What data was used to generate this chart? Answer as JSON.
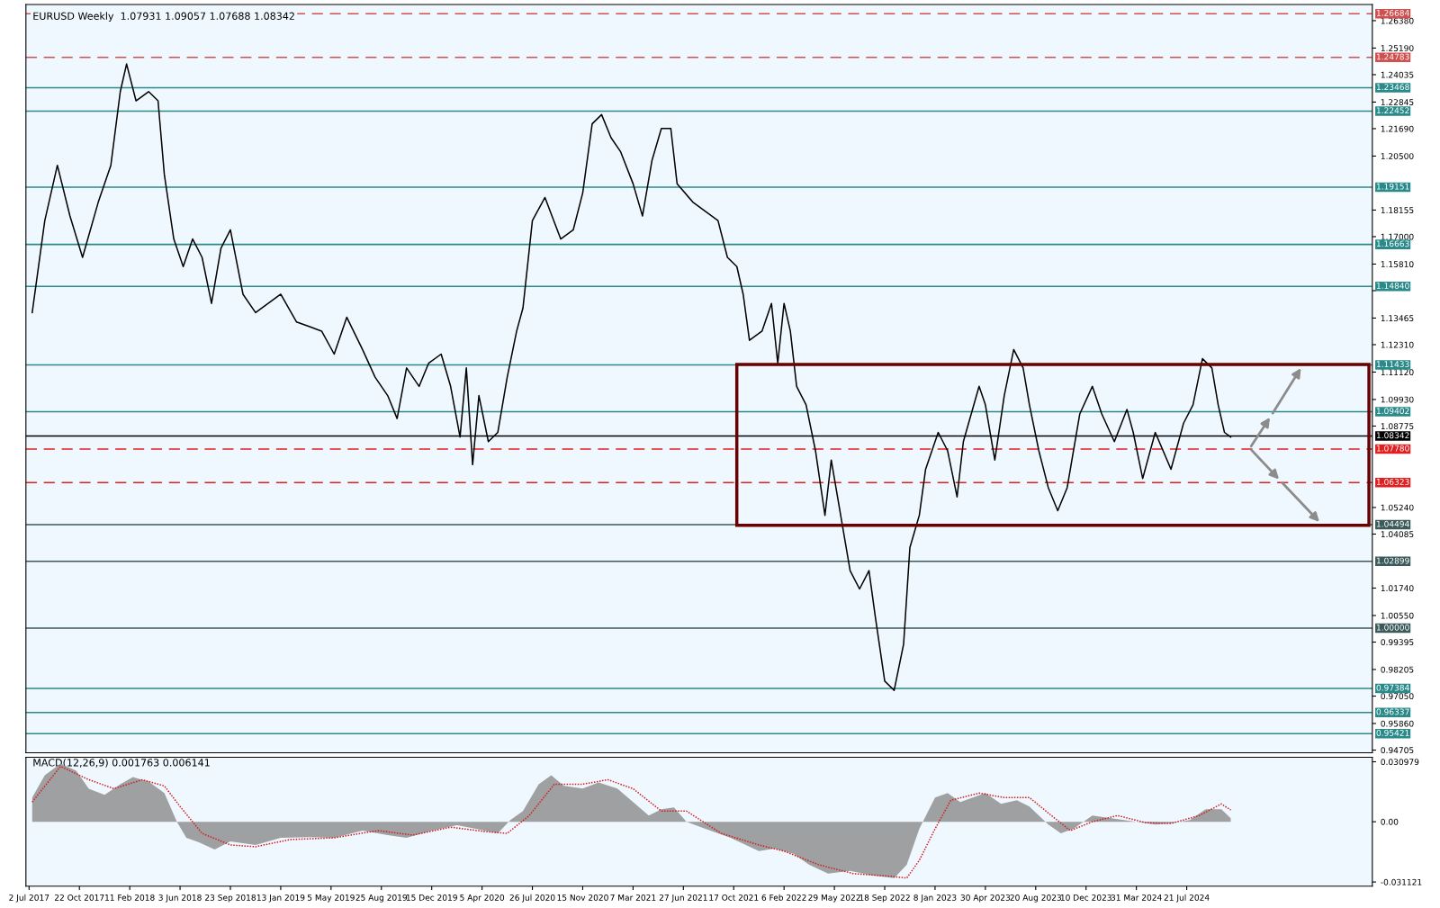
{
  "chart_data": [
    {
      "type": "line",
      "title": "EURUSD Weekly  1.07931 1.09057 1.07688 1.08342",
      "xlim": [
        "2017-06-25",
        "2025-09-07"
      ],
      "ylim": [
        0.9459,
        1.2708
      ],
      "yticks": [
        {
          "value": 1.2638,
          "label": "1.26380"
        },
        {
          "value": 1.2519,
          "label": "1.25190"
        },
        1.24035,
        1.22845,
        {
          "value": 1.2169,
          "label": "1.21690"
        },
        {
          "value": 1.205,
          "label": "1.20500"
        },
        1.18155,
        {
          "value": 1.17,
          "label": "1.17000"
        },
        {
          "value": 1.1581,
          "label": "1.15810"
        },
        {
          "value": 1.14655,
          "label": null
        },
        1.13465,
        {
          "value": 1.1231,
          "label": "1.12310"
        },
        {
          "value": 1.1112,
          "label": "1.11120"
        },
        {
          "value": 1.0993,
          "label": "1.09930"
        },
        1.08775,
        {
          "value": 1.0524,
          "label": "1.05240"
        },
        1.04085,
        {
          "value": 1.0174,
          "label": "1.01740"
        },
        {
          "value": 1.0055,
          "label": "1.00550"
        },
        0.99395,
        0.98205,
        {
          "value": 0.9705,
          "label": "0.97050"
        },
        {
          "value": 0.9586,
          "label": "0.95860"
        },
        0.94705
      ],
      "tick_labels": "y",
      "grid": false,
      "legend": false,
      "series": [
        {
          "color": "#000000",
          "x": [
            "2017-07-09",
            "2017-08-06",
            "2017-09-03",
            "2017-10-01",
            "2017-10-29",
            "2017-12-03",
            "2017-12-31",
            "2018-01-21",
            "2018-02-04",
            "2018-02-25",
            "2018-03-25",
            "2018-04-15",
            "2018-04-29",
            "2018-05-20",
            "2018-06-10",
            "2018-07-01",
            "2018-07-22",
            "2018-08-12",
            "2018-09-02",
            "2018-09-23",
            "2018-10-21",
            "2018-11-18",
            "2018-12-16",
            "2019-01-13",
            "2019-02-17",
            "2019-03-17",
            "2019-04-14",
            "2019-05-12",
            "2019-06-09",
            "2019-07-14",
            "2019-08-11",
            "2019-09-08",
            "2019-09-29",
            "2019-10-20",
            "2019-11-17",
            "2019-12-08",
            "2020-01-05",
            "2020-01-26",
            "2020-02-16",
            "2020-03-01",
            "2020-03-15",
            "2020-03-29",
            "2020-04-19",
            "2020-05-10",
            "2020-05-31",
            "2020-06-21",
            "2020-07-05",
            "2020-07-26",
            "2020-08-23",
            "2020-09-27",
            "2020-10-25",
            "2020-11-15",
            "2020-12-06",
            "2020-12-27",
            "2021-01-17",
            "2021-02-07",
            "2021-03-07",
            "2021-03-28",
            "2021-04-18",
            "2021-05-09",
            "2021-05-30",
            "2021-06-13",
            "2021-07-18",
            "2021-08-15",
            "2021-09-12",
            "2021-10-03",
            "2021-10-24",
            "2021-11-07",
            "2021-11-21",
            "2021-12-19",
            "2022-01-09",
            "2022-01-23",
            "2022-02-06",
            "2022-02-20",
            "2022-03-06",
            "2022-03-27",
            "2022-04-17",
            "2022-05-08",
            "2022-05-22",
            "2022-06-12",
            "2022-07-03",
            "2022-07-24",
            "2022-08-14",
            "2022-08-28",
            "2022-09-18",
            "2022-10-09",
            "2022-10-30",
            "2022-11-13",
            "2022-12-04",
            "2022-12-18",
            "2023-01-15",
            "2023-02-05",
            "2023-02-26",
            "2023-03-12",
            "2023-04-16",
            "2023-04-30",
            "2023-05-21",
            "2023-06-11",
            "2023-07-02",
            "2023-07-23",
            "2023-08-06",
            "2023-08-27",
            "2023-09-17",
            "2023-10-08",
            "2023-10-29",
            "2023-11-26",
            "2023-12-24",
            "2024-01-14",
            "2024-02-11",
            "2024-03-10",
            "2024-03-24",
            "2024-04-14",
            "2024-05-12",
            "2024-06-16",
            "2024-07-14",
            "2024-08-04",
            "2024-08-25",
            "2024-09-15",
            "2024-09-29",
            "2024-10-13",
            "2024-10-27"
          ],
          "values": [
            1.137,
            1.177,
            1.201,
            1.179,
            1.161,
            1.185,
            1.201,
            1.233,
            1.245,
            1.229,
            1.233,
            1.229,
            1.197,
            1.169,
            1.157,
            1.169,
            1.161,
            1.141,
            1.165,
            1.173,
            1.145,
            1.137,
            1.141,
            1.145,
            1.133,
            1.131,
            1.129,
            1.119,
            1.135,
            1.121,
            1.109,
            1.101,
            1.091,
            1.113,
            1.105,
            1.115,
            1.119,
            1.105,
            1.083,
            1.113,
            1.071,
            1.101,
            1.081,
            1.085,
            1.109,
            1.129,
            1.139,
            1.177,
            1.187,
            1.169,
            1.173,
            1.189,
            1.219,
            1.223,
            1.213,
            1.207,
            1.193,
            1.179,
            1.203,
            1.217,
            1.217,
            1.193,
            1.185,
            1.181,
            1.177,
            1.161,
            1.157,
            1.145,
            1.125,
            1.129,
            1.141,
            1.115,
            1.141,
            1.129,
            1.105,
            1.097,
            1.077,
            1.049,
            1.073,
            1.049,
            1.025,
            1.017,
            1.025,
            1.005,
            0.977,
            0.973,
            0.993,
            1.035,
            1.049,
            1.069,
            1.085,
            1.077,
            1.057,
            1.081,
            1.105,
            1.097,
            1.073,
            1.101,
            1.121,
            1.113,
            1.097,
            1.077,
            1.061,
            1.051,
            1.061,
            1.093,
            1.105,
            1.093,
            1.081,
            1.095,
            1.085,
            1.065,
            1.085,
            1.069,
            1.089,
            1.097,
            1.117,
            1.113,
            1.097,
            1.085,
            1.083
          ]
        }
      ],
      "ref_lines": [
        {
          "axis": "y",
          "value": 1.26684,
          "label": "1.26684",
          "color": "#d05050",
          "line_style": "dashed"
        },
        {
          "axis": "y",
          "value": 1.24783,
          "label": "1.24783",
          "color": "#d05050",
          "line_style": "dashed"
        },
        {
          "axis": "y",
          "value": 1.23468,
          "label": "1.23468",
          "color": "#2a8a8a",
          "line_style": "solid"
        },
        {
          "axis": "y",
          "value": 1.22452,
          "label": "1.22452",
          "color": "#2a8a8a",
          "line_style": "solid"
        },
        {
          "axis": "y",
          "value": 1.19151,
          "label": "1.19151",
          "color": "#2a8a8a",
          "line_style": "solid"
        },
        {
          "axis": "y",
          "value": 1.16663,
          "label": "1.16663",
          "color": "#2a8a8a",
          "line_style": "solid"
        },
        {
          "axis": "y",
          "value": 1.1484,
          "label": "1.14840",
          "color": "#2a8a8a",
          "line_style": "solid"
        },
        {
          "axis": "y",
          "value": 1.11433,
          "label": "1.11433",
          "color": "#2a8a8a",
          "line_style": "solid"
        },
        {
          "axis": "y",
          "value": 1.09402,
          "label": "1.09402",
          "color": "#2a8a8a",
          "line_style": "solid"
        },
        {
          "axis": "y",
          "value": 1.08342,
          "label": "1.08342",
          "color": "#000000",
          "line_style": "solid"
        },
        {
          "axis": "y",
          "value": 1.0778,
          "label": "1.07780",
          "color": "#e02020",
          "line_style": "dashed"
        },
        {
          "axis": "y",
          "value": 1.06323,
          "label": "1.06323",
          "color": "#e02020",
          "line_style": "dashed"
        },
        {
          "axis": "y",
          "value": 1.04494,
          "label": "1.04494",
          "color": "#3d5a5a",
          "line_style": "solid"
        },
        {
          "axis": "y",
          "value": 1.02899,
          "label": "1.02899",
          "color": "#3d5a5a",
          "line_style": "solid"
        },
        {
          "axis": "y",
          "value": 1.0,
          "label": "1.00000",
          "color": "#3d5a5a",
          "line_style": "solid"
        },
        {
          "axis": "y",
          "value": 0.97384,
          "label": "0.97384",
          "color": "#2a8a8a",
          "line_style": "solid"
        },
        {
          "axis": "y",
          "value": 0.96337,
          "label": "0.96337",
          "color": "#2a8a8a",
          "line_style": "solid"
        },
        {
          "axis": "y",
          "value": 0.95421,
          "label": "0.95421",
          "color": "#2a8a8a",
          "line_style": "solid"
        }
      ]
    },
    {
      "type": "area",
      "title": "MACD(12,26,9) 0.001763 0.006141",
      "xlim": [
        "2017-06-25",
        "2025-09-07"
      ],
      "ylim": [
        -0.0333,
        0.0333
      ],
      "xticks": [
        {
          "value": "2017-07-02",
          "label": "2 Jul 2017"
        },
        {
          "value": "2017-10-22",
          "label": "22 Oct 2017"
        },
        {
          "value": "2018-02-11",
          "label": "11 Feb 2018"
        },
        {
          "value": "2018-06-03",
          "label": "3 Jun 2018"
        },
        {
          "value": "2018-09-23",
          "label": "23 Sep 2018"
        },
        {
          "value": "2019-01-13",
          "label": "13 Jan 2019"
        },
        {
          "value": "2019-05-05",
          "label": "5 May 2019"
        },
        {
          "value": "2019-08-25",
          "label": "25 Aug 2019"
        },
        {
          "value": "2019-12-15",
          "label": "15 Dec 2019"
        },
        {
          "value": "2020-04-05",
          "label": "5 Apr 2020"
        },
        {
          "value": "2020-07-26",
          "label": "26 Jul 2020"
        },
        {
          "value": "2020-11-15",
          "label": "15 Nov 2020"
        },
        {
          "value": "2021-03-07",
          "label": "7 Mar 2021"
        },
        {
          "value": "2021-06-27",
          "label": "27 Jun 2021"
        },
        {
          "value": "2021-10-17",
          "label": "17 Oct 2021"
        },
        {
          "value": "2022-02-06",
          "label": "6 Feb 2022"
        },
        {
          "value": "2022-05-29",
          "label": "29 May 2022"
        },
        {
          "value": "2022-09-18",
          "label": "18 Sep 2022"
        },
        {
          "value": "2023-01-08",
          "label": "8 Jan 2023"
        },
        {
          "value": "2023-04-30",
          "label": "30 Apr 2023"
        },
        {
          "value": "2023-08-20",
          "label": "20 Aug 2023"
        },
        {
          "value": "2023-12-10",
          "label": "10 Dec 2023"
        },
        {
          "value": "2024-03-31",
          "label": "31 Mar 2024"
        },
        {
          "value": "2024-07-21",
          "label": "21 Jul 2024"
        }
      ],
      "yticks": [
        0.030979,
        {
          "value": 0,
          "label": "0.00"
        },
        -0.031121
      ],
      "grid": false,
      "legend": false,
      "series": [
        {
          "color": "#909090",
          "x": [
            "2017-07-09",
            "2017-08-06",
            "2017-09-10",
            "2017-10-15",
            "2017-11-12",
            "2017-12-17",
            "2018-01-21",
            "2018-02-18",
            "2018-03-25",
            "2018-04-29",
            "2018-05-27",
            "2018-06-17",
            "2018-07-15",
            "2018-08-19",
            "2018-09-23",
            "2018-11-18",
            "2019-01-13",
            "2019-03-17",
            "2019-05-12",
            "2019-07-14",
            "2019-09-08",
            "2019-10-20",
            "2019-12-15",
            "2020-02-09",
            "2020-03-22",
            "2020-05-10",
            "2020-06-07",
            "2020-07-05",
            "2020-08-09",
            "2020-09-06",
            "2020-10-04",
            "2020-11-15",
            "2020-12-20",
            "2021-01-31",
            "2021-03-07",
            "2021-04-11",
            "2021-05-09",
            "2021-06-06",
            "2021-07-04",
            "2021-08-15",
            "2021-10-10",
            "2021-12-12",
            "2022-01-16",
            "2022-02-27",
            "2022-04-03",
            "2022-05-15",
            "2022-07-03",
            "2022-08-21",
            "2022-10-09",
            "2022-11-06",
            "2022-12-04",
            "2023-01-08",
            "2023-02-05",
            "2023-03-05",
            "2023-04-02",
            "2023-04-30",
            "2023-06-04",
            "2023-07-09",
            "2023-08-06",
            "2023-09-17",
            "2023-10-15",
            "2023-11-12",
            "2023-12-24",
            "2024-02-04",
            "2024-03-31",
            "2024-05-12",
            "2024-06-16",
            "2024-07-28",
            "2024-09-01",
            "2024-10-06",
            "2024-10-27"
          ],
          "values": [
            0.0125,
            0.024,
            0.03,
            0.0263,
            0.017,
            0.0139,
            0.0194,
            0.0231,
            0.0208,
            0.0148,
            0,
            -0.0083,
            -0.0106,
            -0.0143,
            -0.0102,
            -0.012,
            -0.0083,
            -0.0079,
            -0.0083,
            -0.0046,
            -0.0069,
            -0.0083,
            -0.0046,
            -0.0018,
            -0.0037,
            -0.006,
            0.0009,
            0.0055,
            0.0194,
            0.024,
            0.0185,
            0.0171,
            0.0203,
            0.0171,
            0.0102,
            0.0032,
            0.0065,
            0.0074,
            0,
            -0.0037,
            -0.0083,
            -0.0152,
            -0.0139,
            -0.0166,
            -0.0222,
            -0.0268,
            -0.0254,
            -0.0277,
            -0.0291,
            -0.0222,
            -0.0037,
            0.0125,
            0.0148,
            0.0102,
            0.0125,
            0.0148,
            0.0092,
            0.0111,
            0.0079,
            -0.0014,
            -0.006,
            -0.0037,
            0.0032,
            0.0018,
            0,
            -0.0014,
            -0.0009,
            0.0009,
            0.0065,
            0.0065,
            0.0018
          ]
        },
        {
          "type": "line",
          "color": "#d02020",
          "line_style": "dotted",
          "x": [
            "2017-07-09",
            "2017-09-10",
            "2017-11-12",
            "2018-01-07",
            "2018-03-11",
            "2018-04-29",
            "2018-06-03",
            "2018-07-22",
            "2018-09-23",
            "2018-11-18",
            "2019-02-03",
            "2019-05-12",
            "2019-08-18",
            "2019-11-03",
            "2020-01-26",
            "2020-04-12",
            "2020-05-31",
            "2020-07-19",
            "2020-09-13",
            "2020-11-15",
            "2021-01-10",
            "2021-03-07",
            "2021-05-09",
            "2021-07-04",
            "2021-09-19",
            "2021-12-12",
            "2022-02-06",
            "2022-04-24",
            "2022-07-10",
            "2022-10-02",
            "2022-11-06",
            "2022-12-04",
            "2023-01-08",
            "2023-02-12",
            "2023-04-16",
            "2023-06-11",
            "2023-08-06",
            "2023-09-24",
            "2023-11-05",
            "2023-12-24",
            "2024-02-18",
            "2024-04-21",
            "2024-06-16",
            "2024-08-18",
            "2024-10-06",
            "2024-10-27"
          ],
          "values": [
            0.0102,
            0.0286,
            0.0217,
            0.0171,
            0.0217,
            0.0185,
            0.0079,
            -0.006,
            -0.012,
            -0.0129,
            -0.0092,
            -0.0083,
            -0.0046,
            -0.0069,
            -0.0028,
            -0.0051,
            -0.006,
            0.0032,
            0.0194,
            0.0194,
            0.0217,
            0.0171,
            0.0055,
            0.0055,
            -0.006,
            -0.012,
            -0.0152,
            -0.0222,
            -0.0268,
            -0.0282,
            -0.0291,
            -0.0199,
            -0.0037,
            0.0111,
            0.0148,
            0.0125,
            0.0125,
            0.0032,
            -0.0046,
            0,
            0.0032,
            -0.0005,
            -0.0009,
            0.0032,
            0.0092,
            0.0061
          ]
        }
      ]
    }
  ]
}
